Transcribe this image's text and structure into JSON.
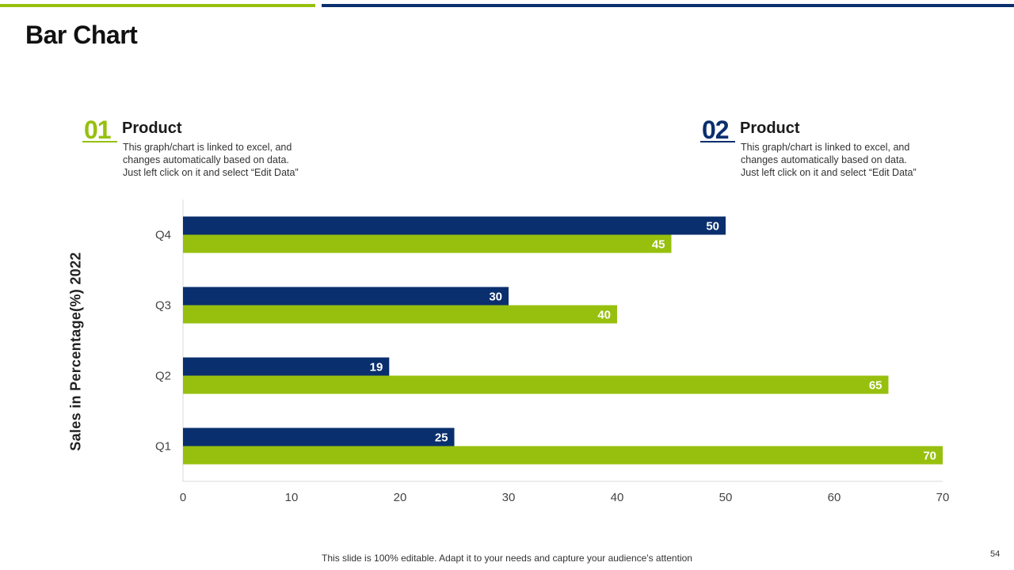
{
  "slide": {
    "title": "Bar Chart",
    "footer_note": "This slide is 100% editable. Adapt it to your needs and capture your audience's attention",
    "page_number": "54"
  },
  "colors": {
    "accent_green": "#97c00e",
    "accent_blue": "#0a2f6e"
  },
  "legend": [
    {
      "number": "01",
      "heading": "Product",
      "description": "This graph/chart is linked to excel, and\nchanges automatically based on data.\nJust left click on it and select “Edit Data”",
      "color": "#97c00e"
    },
    {
      "number": "02",
      "heading": "Product",
      "description": "This graph/chart is linked to excel, and\nchanges automatically based on data.\nJust left click on it and select “Edit Data”",
      "color": "#0a2f6e"
    }
  ],
  "chart_data": {
    "type": "bar",
    "orientation": "horizontal",
    "title": "",
    "xlabel": "",
    "ylabel": "Sales in Percentage(%) 2022",
    "categories": [
      "Q1",
      "Q2",
      "Q3",
      "Q4"
    ],
    "series": [
      {
        "name": "Product 02",
        "color": "#0a2f6e",
        "values": [
          25,
          19,
          30,
          50
        ]
      },
      {
        "name": "Product 01",
        "color": "#97c00e",
        "values": [
          70,
          65,
          40,
          45
        ]
      }
    ],
    "xlim": [
      0,
      70
    ],
    "xticks": [
      0,
      10,
      20,
      30,
      40,
      50,
      60,
      70
    ],
    "grid": false,
    "data_labels": true
  }
}
